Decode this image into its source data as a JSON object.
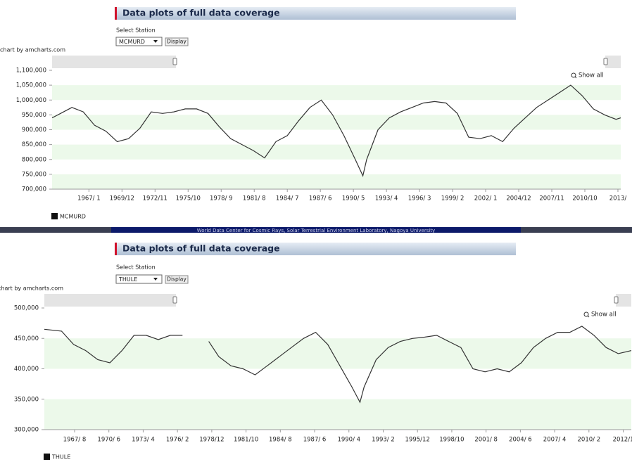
{
  "footer_banner": "World Data Center for Cosmic Rays, Solar Terrestrial Environment Laboratory, Nagoya University",
  "chart_data": [
    {
      "type": "line",
      "header": "Data plots of full data coverage",
      "select_label": "Select Station",
      "button": "Display",
      "credit": "chart by amcharts.com",
      "zoom_label": "Show all",
      "x": [
        "1963-10",
        "1964-07",
        "1965-07",
        "1966-07",
        "1967-07",
        "1968-07",
        "1969-07",
        "1970-07",
        "1971-07",
        "1972-07",
        "1973-07",
        "1974-07",
        "1975-07",
        "1976-07",
        "1977-07",
        "1978-07",
        "1979-07",
        "1980-07",
        "1981-07",
        "1982-07",
        "1983-07",
        "1984-07",
        "1985-07",
        "1986-07",
        "1987-07",
        "1988-07",
        "1989-07",
        "1990-07",
        "1991-03",
        "1991-07",
        "1992-07",
        "1993-07",
        "1994-07",
        "1995-07",
        "1996-07",
        "1997-07",
        "1998-07",
        "1999-07",
        "2000-07",
        "2001-07",
        "2002-07",
        "2003-07",
        "2004-07",
        "2005-07",
        "2006-07",
        "2007-07",
        "2008-07",
        "2009-07",
        "2010-07",
        "2011-07",
        "2012-07",
        "2013-07",
        "2013-12"
      ],
      "series": [
        {
          "name": "MCMURD",
          "color": "#333333",
          "values": [
            940000,
            955000,
            975000,
            960000,
            915000,
            895000,
            860000,
            870000,
            905000,
            960000,
            955000,
            960000,
            970000,
            970000,
            955000,
            910000,
            870000,
            850000,
            830000,
            805000,
            860000,
            880000,
            930000,
            975000,
            1000000,
            950000,
            880000,
            800000,
            745000,
            800000,
            900000,
            940000,
            960000,
            975000,
            990000,
            995000,
            990000,
            955000,
            875000,
            870000,
            880000,
            860000,
            905000,
            940000,
            975000,
            1000000,
            1025000,
            1050000,
            1015000,
            970000,
            950000,
            935000,
            940000
          ]
        }
      ],
      "xlim": [
        "1963-10",
        "2013-12"
      ],
      "xticks": [
        {
          "value": "1967-01",
          "label": "1967/ 1"
        },
        {
          "value": "1969-12",
          "label": "1969/12"
        },
        {
          "value": "1972-11",
          "label": "1972/11"
        },
        {
          "value": "1975-10",
          "label": "1975/10"
        },
        {
          "value": "1978-09",
          "label": "1978/ 9"
        },
        {
          "value": "1981-08",
          "label": "1981/ 8"
        },
        {
          "value": "1984-07",
          "label": "1984/ 7"
        },
        {
          "value": "1987-06",
          "label": "1987/ 6"
        },
        {
          "value": "1990-05",
          "label": "1990/ 5"
        },
        {
          "value": "1993-04",
          "label": "1993/ 4"
        },
        {
          "value": "1996-03",
          "label": "1996/ 3"
        },
        {
          "value": "1999-02",
          "label": "1999/ 2"
        },
        {
          "value": "2002-01",
          "label": "2002/ 1"
        },
        {
          "value": "2004-12",
          "label": "2004/12"
        },
        {
          "value": "2007-11",
          "label": "2007/11"
        },
        {
          "value": "2010-10",
          "label": "2010/10"
        },
        {
          "value": "2013-09",
          "label": "2013/"
        }
      ],
      "ylim": [
        700000,
        1100000
      ],
      "yticks": [
        {
          "value": 700000,
          "label": "700,000"
        },
        {
          "value": 750000,
          "label": "750,000"
        },
        {
          "value": 800000,
          "label": "800,000"
        },
        {
          "value": 850000,
          "label": "850,000"
        },
        {
          "value": 900000,
          "label": "900,000"
        },
        {
          "value": 950000,
          "label": "950,000"
        },
        {
          "value": 1000000,
          "label": "1,000,000"
        },
        {
          "value": 1050000,
          "label": "1,050,000"
        },
        {
          "value": 1100000,
          "label": "1,100,000"
        }
      ],
      "grid": "bands",
      "band_color": "#ecf9ea"
    },
    {
      "type": "line",
      "header": "Data plots of full data coverage",
      "select_label": "Select Station",
      "button": "Display",
      "credit": "chart by amcharts.com",
      "zoom_label": "Show all",
      "x": [
        "1965-02",
        "1966-07",
        "1967-07",
        "1968-07",
        "1969-07",
        "1970-07",
        "1971-07",
        "1972-07",
        "1973-07",
        "1974-07",
        "1975-07",
        "1976-07",
        "1977-07",
        "1978-09",
        "1979-07",
        "1980-07",
        "1981-07",
        "1982-07",
        "1983-07",
        "1984-07",
        "1985-07",
        "1986-07",
        "1987-07",
        "1988-07",
        "1989-07",
        "1990-07",
        "1991-03",
        "1991-07",
        "1992-07",
        "1993-07",
        "1994-07",
        "1995-07",
        "1996-07",
        "1997-07",
        "1998-07",
        "1999-07",
        "2000-07",
        "2001-07",
        "2002-07",
        "2003-07",
        "2004-07",
        "2005-07",
        "2006-07",
        "2007-07",
        "2008-07",
        "2009-07",
        "2010-07",
        "2011-07",
        "2012-07",
        "2013-08"
      ],
      "series": [
        {
          "name": "THULE",
          "color": "#333333",
          "values": [
            465000,
            462000,
            440000,
            430000,
            415000,
            410000,
            430000,
            455000,
            455000,
            448000,
            455000,
            455000,
            null,
            445000,
            420000,
            405000,
            400000,
            390000,
            405000,
            420000,
            435000,
            450000,
            460000,
            440000,
            405000,
            370000,
            345000,
            370000,
            415000,
            435000,
            445000,
            450000,
            452000,
            455000,
            445000,
            435000,
            400000,
            395000,
            400000,
            395000,
            410000,
            435000,
            450000,
            460000,
            460000,
            470000,
            455000,
            435000,
            425000,
            430000
          ]
        }
      ],
      "xlim": [
        "1965-02",
        "2013-08"
      ],
      "xticks": [
        {
          "value": "1967-08",
          "label": "1967/ 8"
        },
        {
          "value": "1970-06",
          "label": "1970/ 6"
        },
        {
          "value": "1973-04",
          "label": "1973/ 4"
        },
        {
          "value": "1976-02",
          "label": "1976/ 2"
        },
        {
          "value": "1978-12",
          "label": "1978/12"
        },
        {
          "value": "1981-10",
          "label": "1981/10"
        },
        {
          "value": "1984-08",
          "label": "1984/ 8"
        },
        {
          "value": "1987-06",
          "label": "1987/ 6"
        },
        {
          "value": "1990-04",
          "label": "1990/ 4"
        },
        {
          "value": "1993-02",
          "label": "1993/ 2"
        },
        {
          "value": "1995-12",
          "label": "1995/12"
        },
        {
          "value": "1998-10",
          "label": "1998/10"
        },
        {
          "value": "2001-08",
          "label": "2001/ 8"
        },
        {
          "value": "2004-06",
          "label": "2004/ 6"
        },
        {
          "value": "2007-04",
          "label": "2007/ 4"
        },
        {
          "value": "2010-02",
          "label": "2010/ 2"
        },
        {
          "value": "2012-12",
          "label": "2012/1"
        }
      ],
      "ylim": [
        300000,
        500000
      ],
      "yticks": [
        {
          "value": 300000,
          "label": "300,000"
        },
        {
          "value": 350000,
          "label": "350,000"
        },
        {
          "value": 400000,
          "label": "400,000"
        },
        {
          "value": 450000,
          "label": "450,000"
        },
        {
          "value": 500000,
          "label": "500,000"
        }
      ],
      "grid": "bands",
      "band_color": "#ecf9ea"
    }
  ]
}
